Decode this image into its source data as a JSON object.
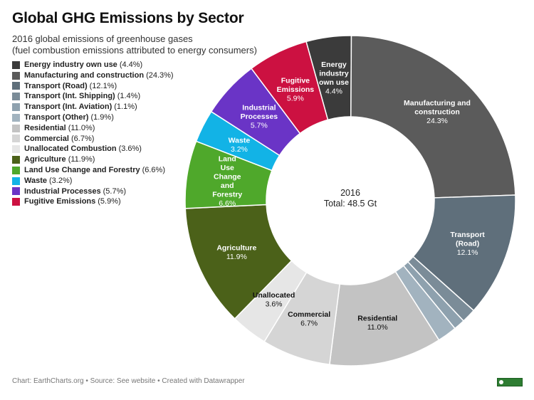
{
  "chart_data": {
    "type": "pie",
    "title": "Global GHG Emissions by Sector",
    "subtitle": [
      "2016 global emissions of greenhouse gases",
      "(fuel combustion emissions attributed to energy consumers)"
    ],
    "center_label": [
      "2016",
      "Total: 48.5 Gt"
    ],
    "legend_position": "top-left",
    "unit": "%",
    "slices": [
      {
        "name": "Energy industry own use",
        "value": 4.4,
        "pct_text": "(4.4%)",
        "chart_label": [
          "Energy",
          "industry",
          "own use"
        ],
        "chart_value": "4.4%",
        "color": "#3b3b3b",
        "label_color": "#ffffff"
      },
      {
        "name": "Manufacturing and construction",
        "value": 24.3,
        "pct_text": "(24.3%)",
        "chart_label": [
          "Manufacturing and",
          "construction"
        ],
        "chart_value": "24.3%",
        "color": "#5b5b5b",
        "label_color": "#ffffff"
      },
      {
        "name": "Transport (Road)",
        "value": 12.1,
        "pct_text": "(12.1%)",
        "chart_label": [
          "Transport",
          "(Road)"
        ],
        "chart_value": "12.1%",
        "color": "#5f6f7b",
        "label_color": "#ffffff"
      },
      {
        "name": "Transport (Int. Shipping)",
        "value": 1.4,
        "pct_text": "(1.4%)",
        "chart_label": [],
        "chart_value": "",
        "color": "#7b8c98",
        "label_color": "#ffffff"
      },
      {
        "name": "Transport (Int. Aviation)",
        "value": 1.1,
        "pct_text": "(1.1%)",
        "chart_label": [],
        "chart_value": "",
        "color": "#8ea1ae",
        "label_color": "#ffffff"
      },
      {
        "name": "Transport (Other)",
        "value": 1.9,
        "pct_text": "(1.9%)",
        "chart_label": [],
        "chart_value": "",
        "color": "#a2b3bf",
        "label_color": "#ffffff"
      },
      {
        "name": "Residential",
        "value": 11.0,
        "pct_text": "(11.0%)",
        "chart_label": [
          "Residential"
        ],
        "chart_value": "11.0%",
        "color": "#c3c3c3",
        "label_color": "#111111"
      },
      {
        "name": "Commercial",
        "value": 6.7,
        "pct_text": "(6.7%)",
        "chart_label": [
          "Commercial"
        ],
        "chart_value": "6.7%",
        "color": "#d5d5d5",
        "label_color": "#111111"
      },
      {
        "name": "Unallocated Combustion",
        "value": 3.6,
        "pct_text": "(3.6%)",
        "chart_label": [
          "Unallocated"
        ],
        "chart_value": "3.6%",
        "color": "#e6e6e6",
        "label_color": "#111111"
      },
      {
        "name": "Agriculture",
        "value": 11.9,
        "pct_text": "(11.9%)",
        "chart_label": [
          "Agriculture"
        ],
        "chart_value": "11.9%",
        "color": "#4b6119",
        "label_color": "#ffffff"
      },
      {
        "name": "Land Use Change and Forestry",
        "value": 6.6,
        "pct_text": "(6.6%)",
        "chart_label": [
          "Land",
          "Use",
          "Change",
          "and",
          "Forestry"
        ],
        "chart_value": "6.6%",
        "color": "#4fa82b",
        "label_color": "#ffffff"
      },
      {
        "name": "Waste",
        "value": 3.2,
        "pct_text": "(3.2%)",
        "chart_label": [
          "Waste"
        ],
        "chart_value": "3.2%",
        "color": "#12b3e6",
        "label_color": "#ffffff"
      },
      {
        "name": "Industrial Processes",
        "value": 5.7,
        "pct_text": "(5.7%)",
        "chart_label": [
          "Industrial",
          "Processes"
        ],
        "chart_value": "5.7%",
        "color": "#6a34c6",
        "label_color": "#ffffff"
      },
      {
        "name": "Fugitive Emissions",
        "value": 5.9,
        "pct_text": "(5.9%)",
        "chart_label": [
          "Fugitive",
          "Emissions"
        ],
        "chart_value": "5.9%",
        "color": "#cc1141",
        "label_color": "#ffffff"
      }
    ]
  },
  "footer": "Chart: EarthCharts.org • Source: See website • Created with Datawrapper"
}
